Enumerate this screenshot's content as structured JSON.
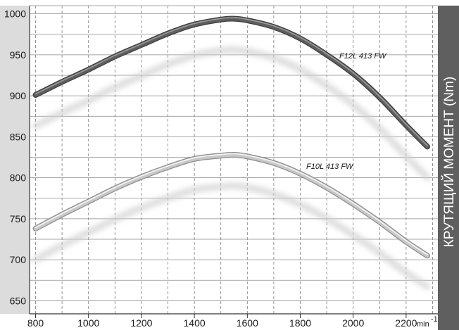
{
  "chart_data": {
    "type": "line",
    "title": "",
    "xlabel": "",
    "x_unit": "min",
    "x_unit_exp": "-1",
    "ylabel": "КРУТЯЩИЙ МОМЕНТ (Nm)",
    "xlim": [
      780,
      2320
    ],
    "ylim": [
      634,
      1010
    ],
    "x_ticks": [
      800,
      1000,
      1200,
      1400,
      1600,
      1800,
      2000,
      2200
    ],
    "x_gridlines": [
      800,
      900,
      1000,
      1100,
      1200,
      1300,
      1400,
      1500,
      1600,
      1700,
      1800,
      1900,
      2000,
      2100,
      2200,
      2300
    ],
    "y_ticks": [
      650,
      700,
      750,
      800,
      850,
      900,
      950,
      1000
    ],
    "grid": true,
    "series": [
      {
        "name": "F12L 413 FW",
        "color": "#5f5f5f",
        "x": [
          800,
          900,
          1000,
          1100,
          1200,
          1300,
          1400,
          1500,
          1550,
          1600,
          1700,
          1800,
          1900,
          2000,
          2100,
          2200,
          2280
        ],
        "y": [
          901,
          917,
          932,
          948,
          962,
          976,
          987,
          993,
          994,
          992,
          984,
          970,
          950,
          927,
          898,
          864,
          838
        ]
      },
      {
        "name": "F10L 413 FW",
        "color": "#c8c8c8",
        "x": [
          800,
          900,
          1000,
          1100,
          1200,
          1300,
          1400,
          1500,
          1550,
          1600,
          1700,
          1800,
          1900,
          2000,
          2100,
          2200,
          2280
        ],
        "y": [
          738,
          755,
          771,
          787,
          801,
          813,
          823,
          827,
          828,
          826,
          818,
          805,
          788,
          768,
          746,
          722,
          705
        ]
      }
    ]
  }
}
